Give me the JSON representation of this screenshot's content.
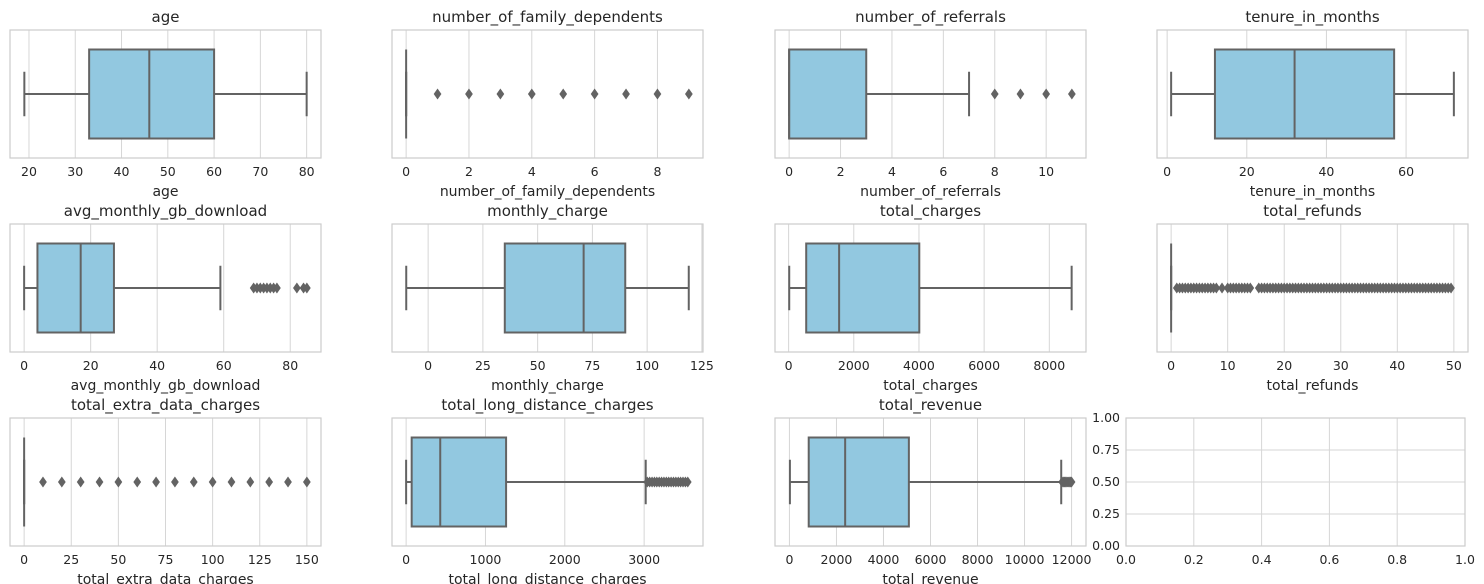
{
  "chart_data": [
    {
      "type": "box",
      "title": "age",
      "xlabel": "age",
      "xlim": [
        15.9,
        83.1
      ],
      "ticks": [
        20,
        30,
        40,
        50,
        60,
        70,
        80
      ],
      "tick_labels": [
        "20",
        "30",
        "40",
        "50",
        "60",
        "70",
        "80"
      ],
      "whislo": 19,
      "q1": 33,
      "median": 46,
      "q3": 60,
      "whishi": 80,
      "outliers": []
    },
    {
      "type": "box",
      "title": "number_of_family_dependents",
      "xlabel": "number_of_family_dependents",
      "xlim": [
        -0.45,
        9.45
      ],
      "ticks": [
        0,
        2,
        4,
        6,
        8
      ],
      "tick_labels": [
        "0",
        "2",
        "4",
        "6",
        "8"
      ],
      "whislo": 0,
      "q1": 0,
      "median": 0,
      "q3": 0,
      "whishi": 0,
      "outliers": [
        1,
        2,
        3,
        4,
        5,
        6,
        7,
        8,
        9
      ]
    },
    {
      "type": "box",
      "title": "number_of_referrals",
      "xlabel": "number_of_referrals",
      "xlim": [
        -0.55,
        11.55
      ],
      "ticks": [
        0,
        2,
        4,
        6,
        8,
        10
      ],
      "tick_labels": [
        "0",
        "2",
        "4",
        "6",
        "8",
        "10"
      ],
      "whislo": 0,
      "q1": 0,
      "median": 0,
      "q3": 3,
      "whishi": 7,
      "outliers": [
        8,
        9,
        10,
        11
      ]
    },
    {
      "type": "box",
      "title": "tenure_in_months",
      "xlabel": "tenure_in_months",
      "xlim": [
        -2.55,
        75.55
      ],
      "ticks": [
        0,
        20,
        40,
        60
      ],
      "tick_labels": [
        "0",
        "20",
        "40",
        "60"
      ],
      "whislo": 1,
      "q1": 12,
      "median": 32,
      "q3": 57,
      "whishi": 72,
      "outliers": []
    },
    {
      "type": "box",
      "title": "avg_monthly_gb_download",
      "xlabel": "avg_monthly_gb_download",
      "xlim": [
        -4.25,
        89.25
      ],
      "ticks": [
        0,
        20,
        40,
        60,
        80
      ],
      "tick_labels": [
        "0",
        "20",
        "40",
        "60",
        "80"
      ],
      "whislo": 0,
      "q1": 4,
      "median": 17,
      "q3": 27,
      "whishi": 59,
      "outliers": [
        69,
        70,
        71,
        72,
        73,
        74,
        75,
        76,
        82,
        84,
        85
      ]
    },
    {
      "type": "box",
      "title": "monthly_charge",
      "xlabel": "monthly_charge",
      "xlim": [
        -16.5,
        125.5
      ],
      "ticks": [
        0,
        25,
        50,
        75,
        100,
        125
      ],
      "tick_labels": [
        "0",
        "25",
        "50",
        "75",
        "100",
        "125"
      ],
      "whislo": -10,
      "q1": 35,
      "median": 71,
      "q3": 90,
      "whishi": 119,
      "outliers": []
    },
    {
      "type": "box",
      "title": "total_charges",
      "xlabel": "total_charges",
      "xlim": [
        -417.5,
        9125.5
      ],
      "ticks": [
        0,
        2000,
        4000,
        6000,
        8000
      ],
      "tick_labels": [
        "0",
        "2000",
        "4000",
        "6000",
        "8000"
      ],
      "whislo": 19,
      "q1": 540,
      "median": 1550,
      "q3": 4010,
      "whishi": 8685,
      "outliers": []
    },
    {
      "type": "box",
      "title": "total_refunds",
      "xlabel": "total_refunds",
      "xlim": [
        -2.5,
        52.5
      ],
      "ticks": [
        0,
        10,
        20,
        30,
        40,
        50
      ],
      "tick_labels": [
        "0",
        "10",
        "20",
        "30",
        "40",
        "50"
      ],
      "whislo": 0,
      "q1": 0,
      "median": 0,
      "q3": 0,
      "whishi": 0,
      "outliers": [
        1,
        1.5,
        2,
        2.5,
        3,
        3.5,
        4,
        4.5,
        5,
        5.5,
        6,
        6.5,
        7,
        7.5,
        8,
        9,
        10,
        10.5,
        11,
        11.5,
        12,
        12.5,
        13,
        13.5,
        14,
        15.5,
        16,
        16.5,
        17,
        17.5,
        18,
        18.5,
        19,
        19.5,
        20,
        20.5,
        21,
        21.5,
        22,
        22.5,
        23,
        23.5,
        24,
        24.5,
        25,
        25.5,
        26,
        26.5,
        27,
        27.5,
        28,
        28.5,
        29,
        29.5,
        30,
        30.5,
        31,
        31.5,
        32,
        32.5,
        33,
        33.5,
        34,
        34.5,
        35,
        35.5,
        36,
        36.5,
        37,
        37.5,
        38,
        38.5,
        39,
        39.5,
        40,
        40.5,
        41,
        41.5,
        42,
        42.5,
        43,
        43.5,
        44,
        44.5,
        45,
        45.5,
        46,
        46.5,
        47,
        47.5,
        48,
        48.5,
        49,
        49.5
      ]
    },
    {
      "type": "box",
      "title": "total_extra_data_charges",
      "xlabel": "total_extra_data_charges",
      "xlim": [
        -7.5,
        157.5
      ],
      "ticks": [
        0,
        25,
        50,
        75,
        100,
        125,
        150
      ],
      "tick_labels": [
        "0",
        "25",
        "50",
        "75",
        "100",
        "125",
        "150"
      ],
      "whislo": 0,
      "q1": 0,
      "median": 0,
      "q3": 0,
      "whishi": 0,
      "outliers": [
        10,
        20,
        30,
        40,
        50,
        60,
        70,
        80,
        90,
        100,
        110,
        120,
        130,
        140,
        150
      ]
    },
    {
      "type": "box",
      "title": "total_long_distance_charges",
      "xlabel": "total_long_distance_charges",
      "xlim": [
        -178,
        3742
      ],
      "ticks": [
        0,
        1000,
        2000,
        3000
      ],
      "tick_labels": [
        "0",
        "1000",
        "2000",
        "3000"
      ],
      "whislo": 0,
      "q1": 70,
      "median": 430,
      "q3": 1260,
      "whishi": 3020,
      "outliers": [
        3040,
        3070,
        3100,
        3130,
        3160,
        3190,
        3220,
        3250,
        3280,
        3310,
        3340,
        3370,
        3400,
        3430,
        3460,
        3490,
        3520,
        3550
      ]
    },
    {
      "type": "box",
      "title": "total_revenue",
      "xlabel": "total_revenue",
      "xlim": [
        -614,
        12614
      ],
      "ticks": [
        0,
        2000,
        4000,
        6000,
        8000,
        10000,
        12000
      ],
      "tick_labels": [
        "0",
        "2000",
        "4000",
        "6000",
        "8000",
        "10000",
        "12000"
      ],
      "whislo": 20,
      "q1": 820,
      "median": 2370,
      "q3": 5080,
      "whishi": 11560,
      "outliers": [
        11600,
        11650,
        11700,
        11750,
        11800,
        11850,
        11900,
        11950,
        12000
      ]
    },
    {
      "type": "empty",
      "title": "",
      "xlabel": "",
      "xlim": [
        0,
        1
      ],
      "ylim": [
        0,
        1
      ],
      "ticks": [
        0,
        0.2,
        0.4,
        0.6,
        0.8,
        1.0
      ],
      "tick_labels": [
        "0.0",
        "0.2",
        "0.4",
        "0.6",
        "0.8",
        "1.0"
      ],
      "yticks": [
        0,
        0.25,
        0.5,
        0.75,
        1.0
      ],
      "ytick_labels": [
        "0.00",
        "0.25",
        "0.50",
        "0.75",
        "1.00"
      ]
    }
  ],
  "colors": {
    "box_fill": "#92c8e0",
    "line": "#636363",
    "grid": "#d6d6d6",
    "spine": "#cccccc",
    "text": "#262626"
  }
}
